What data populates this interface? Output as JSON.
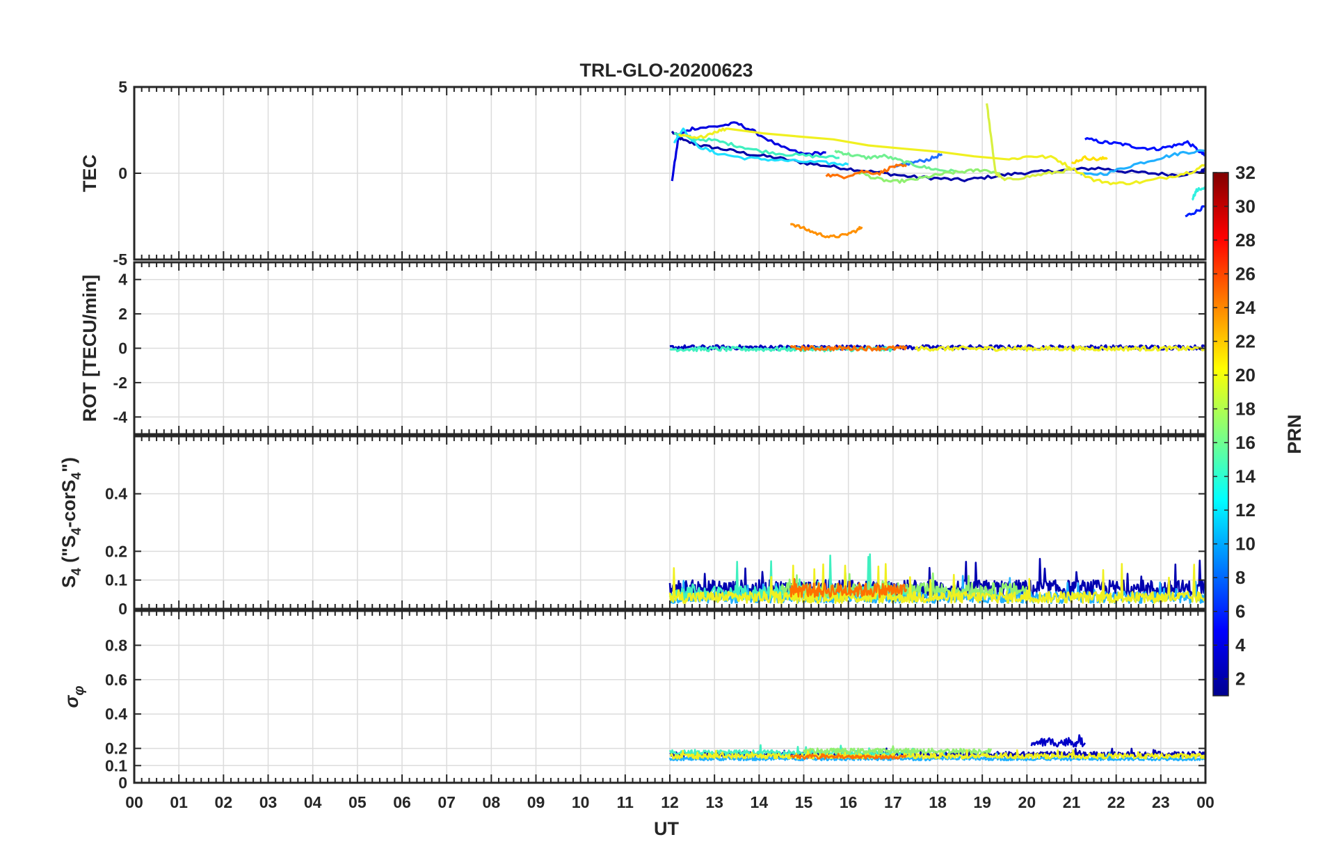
{
  "title": "TRL-GLO-20200623",
  "x_axis": {
    "label": "UT",
    "range": [
      0,
      24
    ],
    "tick_labels": [
      "00",
      "01",
      "02",
      "03",
      "04",
      "05",
      "06",
      "07",
      "08",
      "09",
      "10",
      "11",
      "12",
      "13",
      "14",
      "15",
      "16",
      "17",
      "18",
      "19",
      "20",
      "21",
      "22",
      "23",
      "00"
    ]
  },
  "colorbar": {
    "label": "PRN",
    "range": [
      1,
      32
    ],
    "tick_values": [
      2,
      4,
      6,
      8,
      10,
      12,
      14,
      16,
      18,
      20,
      22,
      24,
      26,
      28,
      30,
      32
    ],
    "colormap": "jet",
    "colors": [
      "#00008f",
      "#0000ff",
      "#0080ff",
      "#00ffff",
      "#80ff80",
      "#ffff00",
      "#ff8000",
      "#ff0000",
      "#800000"
    ]
  },
  "grid": true,
  "chart_data": [
    {
      "type": "line",
      "panel": "tec",
      "ylabel": "TEC",
      "ylim": [
        -5,
        5
      ],
      "ytick_labels": [
        "-5",
        "0",
        "5"
      ],
      "ytick_values": [
        -5,
        0,
        5
      ],
      "x_unit": "UT hour",
      "series": [
        {
          "prn": 2,
          "color": "#0000a8",
          "x": [
            12.05,
            12.3,
            12.7,
            13.2,
            13.8,
            14.4,
            15.0,
            15.6,
            16.2,
            16.8,
            17.4,
            18.0,
            18.6,
            19.2,
            19.8,
            20.4,
            21.0,
            21.6,
            22.2,
            22.8,
            23.4,
            23.9,
            24.0
          ],
          "y": [
            2.4,
            1.9,
            1.6,
            1.4,
            1.1,
            0.9,
            0.6,
            0.4,
            0.2,
            0.0,
            -0.2,
            -0.3,
            -0.4,
            -0.2,
            0.0,
            0.1,
            0.2,
            0.3,
            0.1,
            0.0,
            -0.1,
            0.1,
            0.2
          ]
        },
        {
          "prn": 4,
          "color": "#0000e0",
          "x": [
            12.05,
            12.2,
            12.5,
            13.0,
            13.5,
            13.9,
            14.5,
            15.0,
            15.5
          ],
          "y": [
            -0.4,
            2.2,
            2.6,
            2.7,
            2.9,
            2.4,
            1.5,
            1.1,
            1.2
          ]
        },
        {
          "prn": 5,
          "color": "#0010ff",
          "x": [
            21.3,
            21.7,
            22.1,
            22.5,
            22.9,
            23.3,
            23.6,
            23.9,
            24.0
          ],
          "y": [
            2.0,
            1.8,
            1.7,
            1.5,
            1.4,
            1.6,
            1.8,
            1.2,
            1.0
          ]
        },
        {
          "prn": 5,
          "color": "#0020ff",
          "x": [
            23.55,
            23.8,
            24.0
          ],
          "y": [
            -2.5,
            -2.2,
            -1.9
          ]
        },
        {
          "prn": 8,
          "color": "#2070ff",
          "x": [
            17.0,
            17.4,
            17.8,
            18.1
          ],
          "y": [
            0.3,
            0.6,
            0.8,
            1.1
          ]
        },
        {
          "prn": 10,
          "color": "#20b0ff",
          "x": [
            21.2,
            21.8,
            22.4,
            23.0,
            23.5,
            24.0
          ],
          "y": [
            -0.1,
            0.0,
            0.5,
            0.9,
            1.2,
            1.3
          ]
        },
        {
          "prn": 12,
          "color": "#20e0ff",
          "x": [
            12.1,
            12.3,
            12.6,
            13.0,
            13.6,
            14.2,
            14.8,
            15.5,
            16.0
          ],
          "y": [
            1.8,
            2.6,
            1.6,
            1.2,
            0.9,
            0.8,
            0.7,
            0.6,
            0.5
          ]
        },
        {
          "prn": 13,
          "color": "#30f0e0",
          "x": [
            23.7,
            23.8,
            24.0
          ],
          "y": [
            -1.5,
            -1.0,
            -0.8
          ]
        },
        {
          "prn": 14,
          "color": "#40f0c0",
          "x": [
            12.1,
            12.5,
            13.0,
            13.5,
            14.0,
            14.6,
            15.2,
            15.8
          ],
          "y": [
            2.3,
            2.0,
            1.9,
            1.6,
            1.3,
            1.1,
            1.0,
            0.9
          ]
        },
        {
          "prn": 16,
          "color": "#70f090",
          "x": [
            15.7,
            16.0,
            16.4,
            16.8,
            17.2,
            17.6,
            18.0,
            18.4
          ],
          "y": [
            1.3,
            1.1,
            0.9,
            1.0,
            0.7,
            0.4,
            0.2,
            0.1
          ]
        },
        {
          "prn": 17,
          "color": "#90f070",
          "x": [
            16.2,
            16.6,
            17.0,
            17.4,
            17.8,
            18.2,
            18.6,
            19.0,
            19.4
          ],
          "y": [
            0.1,
            -0.3,
            -0.5,
            -0.4,
            -0.2,
            0.0,
            0.1,
            0.2,
            0.0
          ]
        },
        {
          "prn": 19,
          "color": "#d8f040",
          "x": [
            19.1,
            19.2,
            19.3,
            19.5,
            20.0,
            20.5,
            21.0
          ],
          "y": [
            4.1,
            2.0,
            0.0,
            -0.4,
            -0.2,
            0.0,
            0.2
          ]
        },
        {
          "prn": 20,
          "color": "#f0f020",
          "x": [
            12.2,
            12.6,
            13.0,
            13.3,
            19.6,
            20.1,
            20.6,
            21.0,
            21.5,
            22.0,
            22.6,
            23.2,
            23.7,
            24.0
          ],
          "y": [
            2.2,
            2.0,
            2.4,
            2.6,
            0.8,
            1.0,
            0.9,
            0.3,
            -0.4,
            -0.6,
            -0.5,
            -0.2,
            0.1,
            0.5
          ]
        },
        {
          "prn": 21,
          "color": "#ffe000",
          "x": [
            21.0,
            21.3,
            21.6,
            21.8
          ],
          "y": [
            0.6,
            0.9,
            0.8,
            0.9
          ]
        },
        {
          "prn": 23,
          "color": "#ff9000",
          "x": [
            14.7,
            15.0,
            15.3,
            15.6,
            15.9,
            16.2,
            16.3
          ],
          "y": [
            -2.9,
            -3.2,
            -3.5,
            -3.7,
            -3.6,
            -3.3,
            -3.1
          ]
        },
        {
          "prn": 24,
          "color": "#ff7000",
          "x": [
            15.5,
            15.9,
            16.3,
            16.7,
            17.0,
            17.3
          ],
          "y": [
            -0.1,
            -0.2,
            0.1,
            0.0,
            0.4,
            0.4
          ]
        }
      ]
    },
    {
      "type": "line",
      "panel": "rot",
      "ylabel": "ROT [TECU/min]",
      "ylim": [
        -5,
        5
      ],
      "ytick_labels": [
        "-4",
        "-2",
        "0",
        "2",
        "4"
      ],
      "ytick_values": [
        -4,
        -2,
        0,
        2,
        4
      ],
      "x_unit": "UT hour",
      "series": [
        {
          "prn": 2,
          "color": "#0000c0",
          "x": [
            12.0,
            24.0
          ],
          "y": [
            0.05,
            0.05
          ]
        },
        {
          "prn": 14,
          "color": "#40f0c0",
          "x": [
            12.0,
            17.0
          ],
          "y": [
            -0.05,
            -0.05
          ]
        },
        {
          "prn": 20,
          "color": "#f0f020",
          "x": [
            17.5,
            24.0
          ],
          "y": [
            -0.02,
            -0.02
          ]
        },
        {
          "prn": 24,
          "color": "#ff7000",
          "x": [
            14.7,
            17.3
          ],
          "y": [
            0.0,
            0.0
          ]
        }
      ]
    },
    {
      "type": "line",
      "panel": "s4",
      "ylabel_main": "S",
      "ylabel_sub": "4",
      "ylabel_rest": " (\"S",
      "ylabel_sub2": "4",
      "ylabel_tail": "-corS",
      "ylabel_sub3": "4",
      "ylabel_end": "\")",
      "ylim": [
        0,
        0.6
      ],
      "ytick_labels": [
        "0",
        "0.1",
        "0.2",
        "0.4"
      ],
      "ytick_values": [
        0,
        0.1,
        0.2,
        0.4
      ],
      "x_unit": "UT hour",
      "noise_bands": [
        {
          "prn": 2,
          "color": "#0000b0",
          "x_range": [
            12.0,
            24.0
          ],
          "base": 0.04,
          "amp": 0.06,
          "peak": 0.18
        },
        {
          "prn": 10,
          "color": "#20b0ff",
          "x_range": [
            12.0,
            24.0
          ],
          "base": 0.02,
          "amp": 0.04,
          "peak": 0.12
        },
        {
          "prn": 14,
          "color": "#40f0c0",
          "x_range": [
            12.0,
            17.5
          ],
          "base": 0.03,
          "amp": 0.05,
          "peak": 0.19
        },
        {
          "prn": 17,
          "color": "#90f070",
          "x_range": [
            14.5,
            20.0
          ],
          "base": 0.04,
          "amp": 0.05,
          "peak": 0.13
        },
        {
          "prn": 20,
          "color": "#f0f020",
          "x_range": [
            12.0,
            24.0
          ],
          "base": 0.02,
          "amp": 0.04,
          "peak": 0.16
        },
        {
          "prn": 24,
          "color": "#ff7000",
          "x_range": [
            14.7,
            17.3
          ],
          "base": 0.04,
          "amp": 0.05,
          "peak": 0.12
        }
      ]
    },
    {
      "type": "line",
      "panel": "sigma",
      "ylabel": "σ",
      "ylabel_sub": "φ",
      "ylim": [
        0,
        1
      ],
      "ytick_labels": [
        "0",
        "0.1",
        "0.2",
        "0.4",
        "0.6",
        "0.8"
      ],
      "ytick_values": [
        0,
        0.1,
        0.2,
        0.4,
        0.6,
        0.8
      ],
      "x_unit": "UT hour",
      "noise_bands": [
        {
          "prn": 2,
          "color": "#0000b0",
          "x_range": [
            12.0,
            24.0
          ],
          "base": 0.15,
          "amp": 0.03,
          "peak": 0.2
        },
        {
          "prn": 3,
          "color": "#0000c8",
          "x_range": [
            20.1,
            21.3
          ],
          "base": 0.21,
          "amp": 0.05,
          "peak": 0.3
        },
        {
          "prn": 10,
          "color": "#20b0ff",
          "x_range": [
            12.0,
            24.0
          ],
          "base": 0.13,
          "amp": 0.02,
          "peak": 0.18
        },
        {
          "prn": 14,
          "color": "#40f0c0",
          "x_range": [
            12.0,
            17.5
          ],
          "base": 0.16,
          "amp": 0.03,
          "peak": 0.22
        },
        {
          "prn": 17,
          "color": "#90f070",
          "x_range": [
            15.0,
            19.2
          ],
          "base": 0.17,
          "amp": 0.03,
          "peak": 0.23
        },
        {
          "prn": 20,
          "color": "#f0f020",
          "x_range": [
            12.0,
            24.0
          ],
          "base": 0.14,
          "amp": 0.03,
          "peak": 0.19
        },
        {
          "prn": 24,
          "color": "#ff7000",
          "x_range": [
            14.7,
            17.3
          ],
          "base": 0.14,
          "amp": 0.02,
          "peak": 0.17
        }
      ]
    }
  ]
}
